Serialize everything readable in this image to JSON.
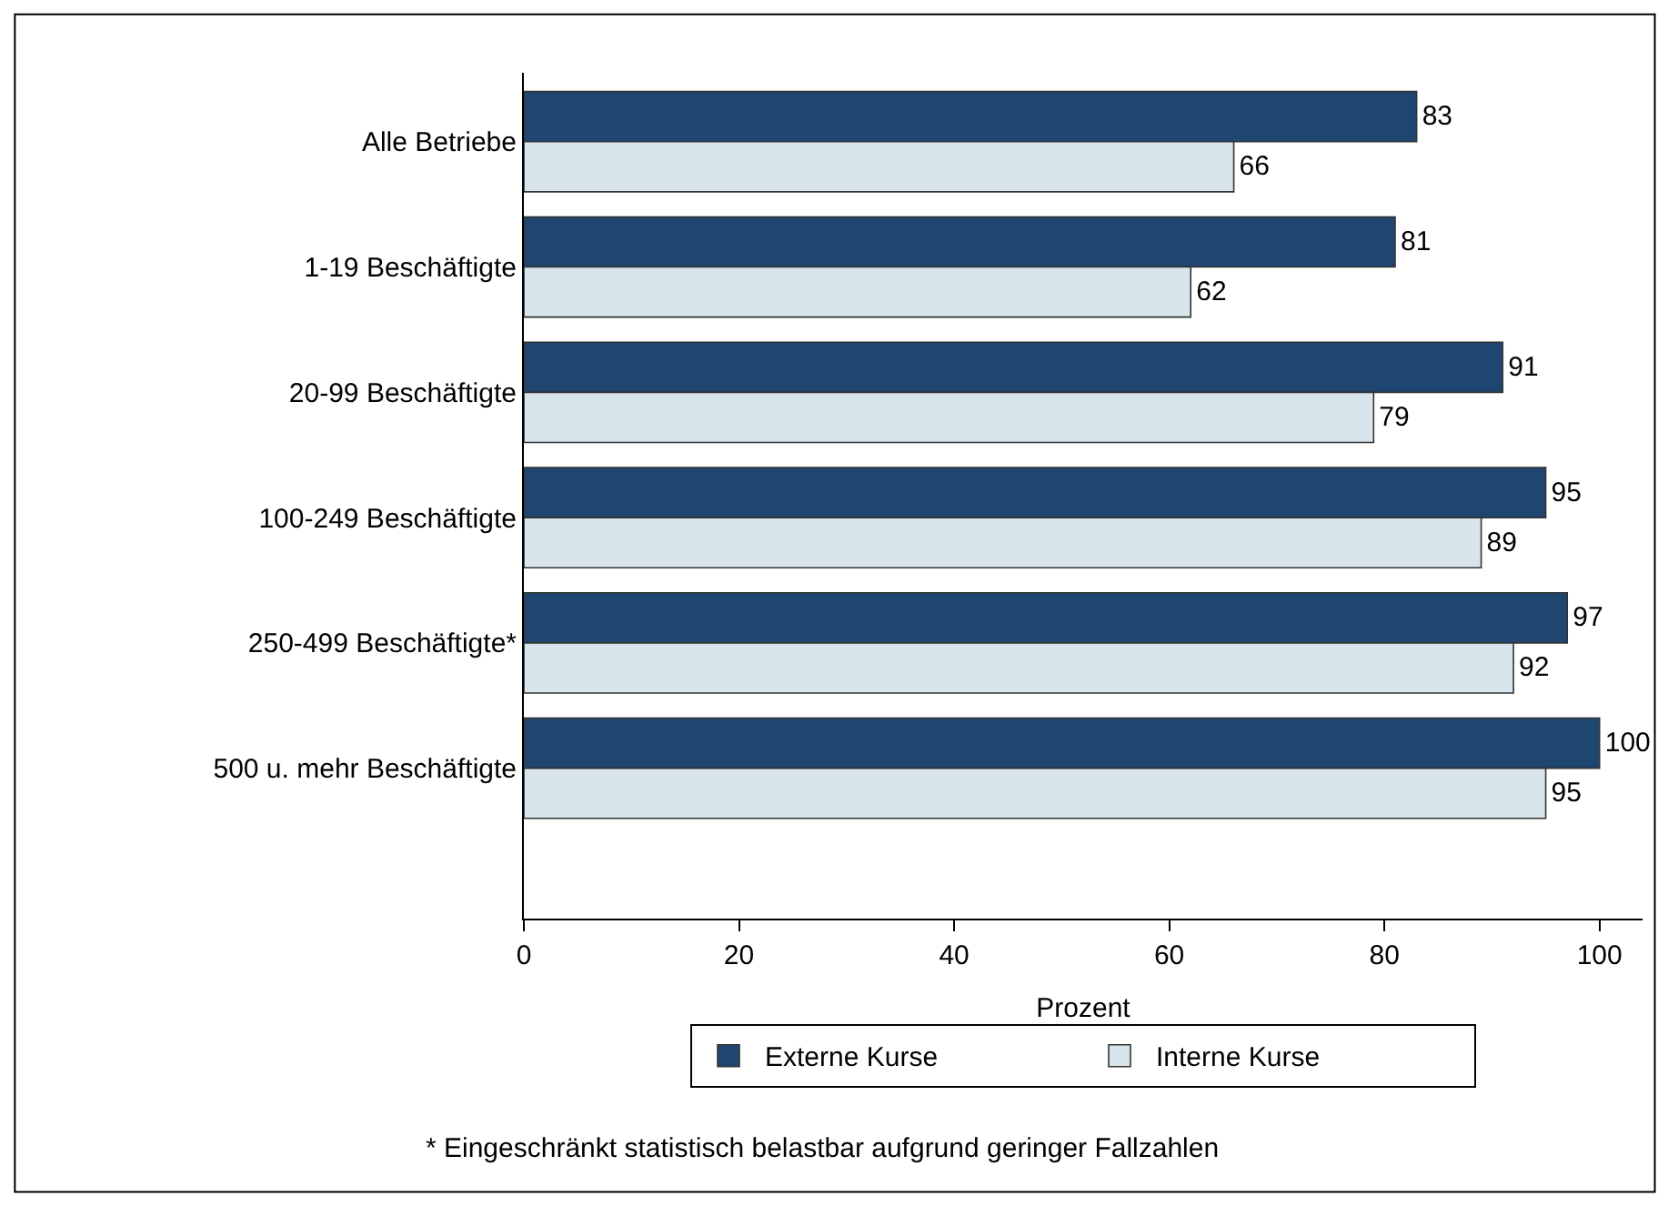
{
  "chart_data": {
    "type": "bar",
    "orientation": "horizontal",
    "xlabel": "Prozent",
    "categories": [
      "Alle Betriebe",
      "1-19 Beschäftigte",
      "20-99 Beschäftigte",
      "100-249 Beschäftigte",
      "250-499 Beschäftigte*",
      "500 u. mehr Beschäftigte"
    ],
    "series": [
      {
        "name": "Externe Kurse",
        "color": "#1f4670",
        "values": [
          83,
          81,
          91,
          95,
          97,
          100
        ]
      },
      {
        "name": "Interne Kurse",
        "color": "#d9e5ec",
        "values": [
          66,
          62,
          79,
          89,
          92,
          95
        ]
      }
    ],
    "xlim": [
      0,
      104
    ],
    "xticks": [
      0,
      20,
      40,
      60,
      80,
      100
    ],
    "data_labels": true,
    "legend": "bottom",
    "annotations": [
      "* Eingeschränkt statistisch belastbar aufgrund geringer Fallzahlen"
    ]
  }
}
